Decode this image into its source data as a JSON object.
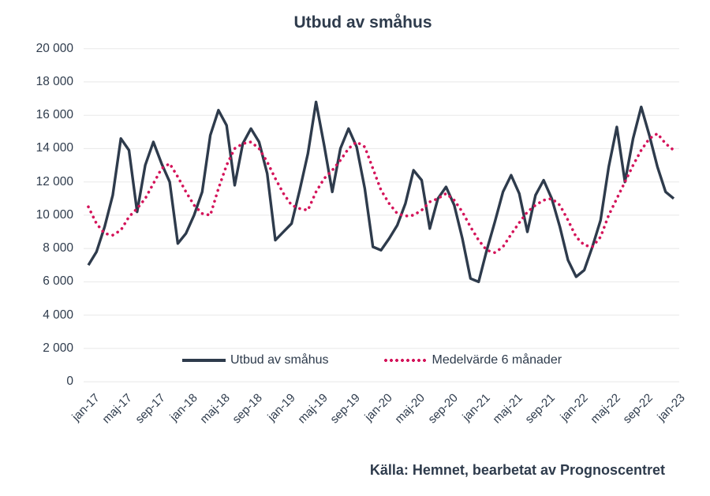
{
  "title": "Utbud av småhus",
  "source": "Källa: Hemnet, bearbetat av Prognoscentret",
  "colors": {
    "text": "#2e3b4c",
    "grid": "#e8e8e8",
    "background": "#ffffff",
    "supply_line": "#2e3b4c",
    "mean_line": "#d4145a"
  },
  "legend": [
    {
      "label": "Utbud av småhus",
      "style": "solid"
    },
    {
      "label": "Medelvärde 6 månader",
      "style": "dotted"
    }
  ],
  "chart_data": {
    "type": "line",
    "title": "Utbud av småhus",
    "xlabel": "",
    "ylabel": "",
    "ylim": [
      0,
      20000
    ],
    "grid": "horizontal",
    "legend_position": "bottom-inside",
    "x_interval": "monthly, jan-17 till jan-23",
    "x_tick_labels": [
      "jan-17",
      "maj-17",
      "sep-17",
      "jan-18",
      "maj-18",
      "sep-18",
      "jan-19",
      "maj-19",
      "sep-19",
      "jan-20",
      "maj-20",
      "sep-20",
      "jan-21",
      "maj-21",
      "sep-21",
      "jan-22",
      "maj-22",
      "sep-22",
      "jan-23"
    ],
    "y_ticks": [
      "0",
      "2 000",
      "4 000",
      "6 000",
      "8 000",
      "10 000",
      "12 000",
      "14 000",
      "16 000",
      "18 000",
      "20 000"
    ],
    "series": [
      {
        "name": "Utbud av småhus",
        "style": "solid",
        "color": "#2e3b4c",
        "values": [
          7000,
          7800,
          9300,
          11200,
          14600,
          13900,
          10200,
          13000,
          14400,
          13100,
          12000,
          8300,
          8900,
          10000,
          11400,
          14800,
          16300,
          15400,
          11800,
          14300,
          15200,
          14400,
          12500,
          8500,
          9000,
          9500,
          11500,
          13700,
          16800,
          14200,
          11400,
          14000,
          15200,
          14100,
          11600,
          8100,
          7900,
          8600,
          9400,
          10700,
          12700,
          12100,
          9200,
          11000,
          11700,
          10600,
          8600,
          6200,
          6000,
          7900,
          9600,
          11400,
          12400,
          11300,
          9000,
          11200,
          12100,
          11000,
          9300,
          7300,
          6300,
          6700,
          8100,
          9700,
          12900,
          15300,
          12000,
          14600,
          16500,
          14800,
          12900,
          11400,
          11000
        ]
      },
      {
        "name": "Medelvärde 6 månader",
        "style": "dotted",
        "color": "#d4145a",
        "values": [
          10500,
          9500,
          8900,
          8800,
          9100,
          9900,
          10400,
          11000,
          11900,
          12800,
          13100,
          12300,
          11400,
          10600,
          10100,
          10000,
          11600,
          13000,
          14000,
          14300,
          14400,
          14000,
          13200,
          12200,
          11300,
          10600,
          10400,
          10300,
          11400,
          12200,
          12700,
          13300,
          14000,
          14400,
          14100,
          12800,
          11500,
          10700,
          10100,
          9950,
          10000,
          10300,
          10800,
          11000,
          11300,
          10900,
          10200,
          9300,
          8500,
          7900,
          7750,
          8100,
          8850,
          9550,
          10200,
          10600,
          10900,
          11000,
          10600,
          9700,
          8700,
          8200,
          8100,
          8700,
          10000,
          11000,
          12000,
          13000,
          13900,
          14600,
          14900,
          14300,
          13900
        ]
      }
    ]
  }
}
